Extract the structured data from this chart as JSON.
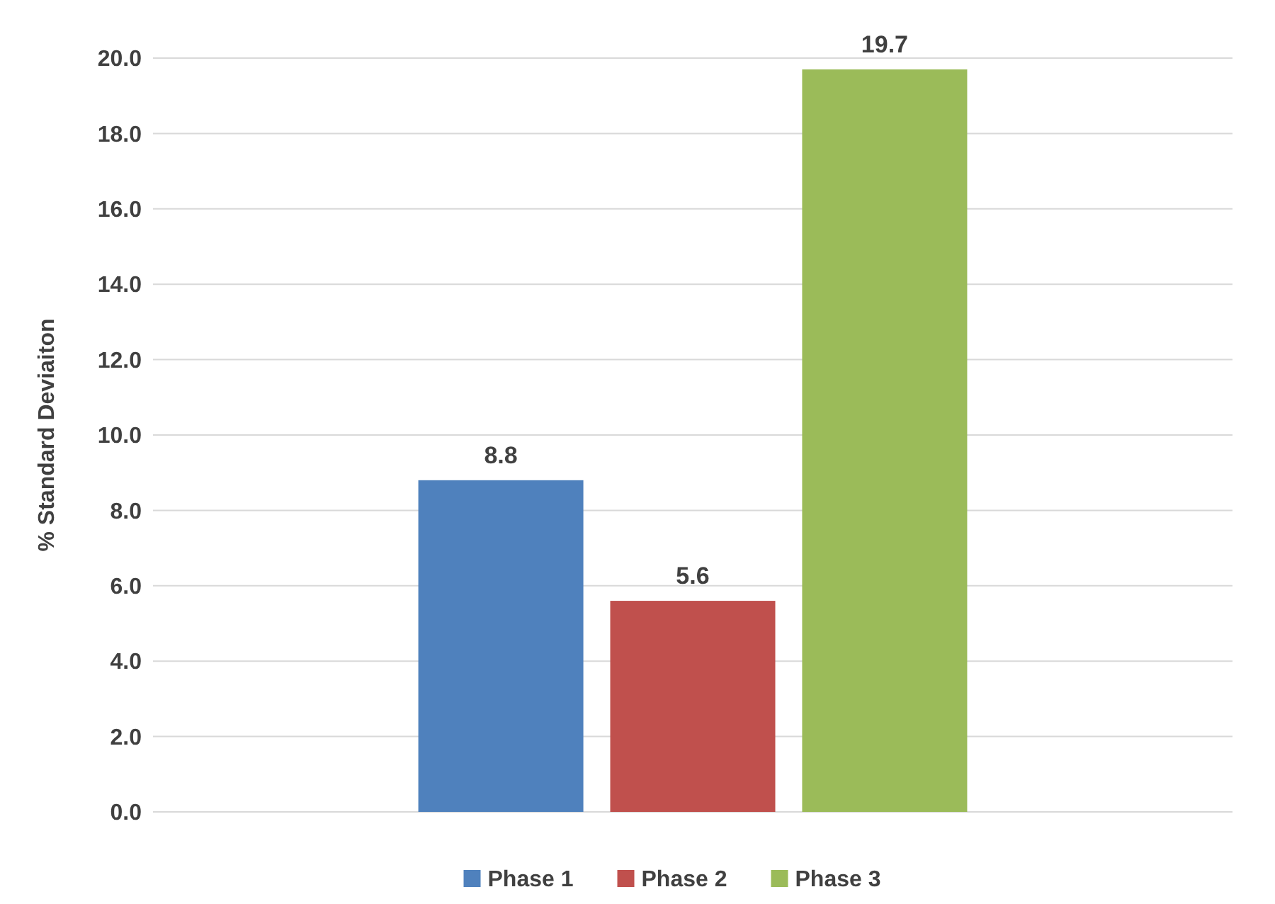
{
  "chart_data": {
    "type": "bar",
    "ylabel": "% Standard Deviaiton",
    "categories": [
      null
    ],
    "series": [
      {
        "name": "Phase 1",
        "color": "#4f81bd",
        "values": [
          8.8
        ]
      },
      {
        "name": "Phase 2",
        "color": "#c0504d",
        "values": [
          5.6
        ]
      },
      {
        "name": "Phase 3",
        "color": "#9bbb59",
        "values": [
          19.7
        ]
      }
    ],
    "ylim": [
      0,
      20
    ],
    "yticks": [
      {
        "value": 0,
        "label": "0.0"
      },
      {
        "value": 2,
        "label": "2.0"
      },
      {
        "value": 4,
        "label": "4.0"
      },
      {
        "value": 6,
        "label": "6.0"
      },
      {
        "value": 8,
        "label": "8.0"
      },
      {
        "value": 10,
        "label": "10.0"
      },
      {
        "value": 12,
        "label": "12.0"
      },
      {
        "value": 14,
        "label": "14.0"
      },
      {
        "value": 16,
        "label": "16.0"
      },
      {
        "value": 18,
        "label": "18.0"
      },
      {
        "value": 20,
        "label": "20.0"
      }
    ],
    "grid": "y",
    "legend": "bottom",
    "data_labels": true
  }
}
